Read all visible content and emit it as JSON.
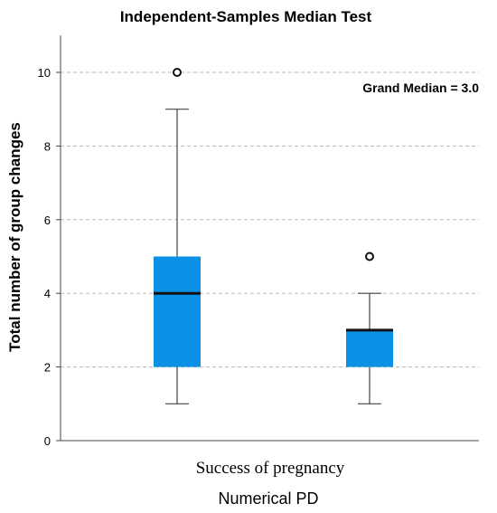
{
  "chart_data": {
    "type": "box",
    "title": "Independent-Samples Median Test",
    "ylabel": "Total number of group changes",
    "xlabel": "Numerical PD",
    "x_category_label": "Success of pregnancy",
    "annotation": "Grand Median = 3.0",
    "ylim": [
      0,
      11
    ],
    "yticks": [
      0,
      2,
      4,
      6,
      8,
      10
    ],
    "grid": true,
    "box_color": "#0a91e6",
    "boxes": [
      {
        "name": "",
        "min": 1,
        "q1": 2,
        "median": 4,
        "q3": 5,
        "max": 9,
        "outliers": [
          10
        ]
      },
      {
        "name": "",
        "min": 1,
        "q1": 2,
        "median": 3,
        "q3": 3,
        "max": 4,
        "outliers": [
          5
        ]
      }
    ]
  }
}
